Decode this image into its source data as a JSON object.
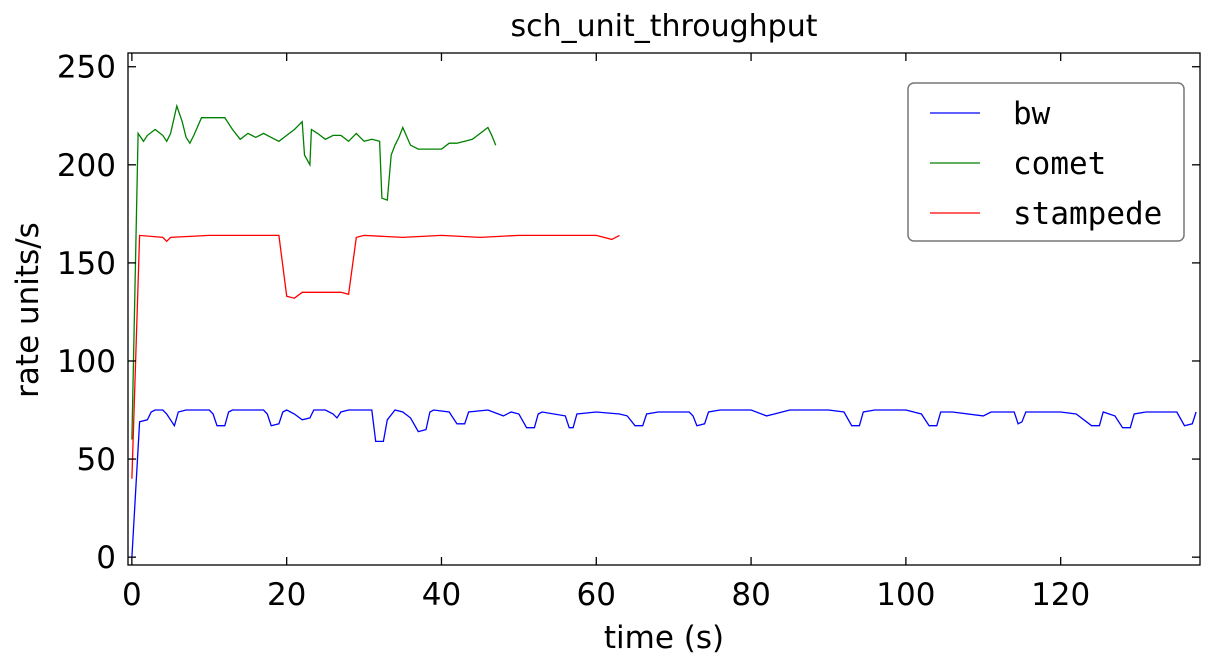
{
  "chart_data": {
    "type": "line",
    "title": "sch_unit_throughput",
    "xlabel": "time (s)",
    "ylabel": "rate units/s",
    "xlim": [
      -0.5,
      138
    ],
    "ylim": [
      -4,
      257
    ],
    "xticks": [
      0,
      20,
      40,
      60,
      80,
      100,
      120
    ],
    "yticks": [
      0,
      50,
      100,
      150,
      200,
      250
    ],
    "grid": false,
    "legend_position": "top-right",
    "series": [
      {
        "name": "bw",
        "color": "#0000ff",
        "points": [
          [
            0,
            0
          ],
          [
            1,
            69
          ],
          [
            2,
            70
          ],
          [
            2.5,
            74
          ],
          [
            3,
            75
          ],
          [
            4,
            75
          ],
          [
            4.5,
            73
          ],
          [
            5.5,
            67
          ],
          [
            6,
            74
          ],
          [
            7,
            75
          ],
          [
            10,
            75
          ],
          [
            10.5,
            73
          ],
          [
            11,
            67
          ],
          [
            12,
            67
          ],
          [
            12.5,
            74
          ],
          [
            13,
            75
          ],
          [
            17,
            75
          ],
          [
            17.5,
            73
          ],
          [
            18,
            67
          ],
          [
            19,
            68
          ],
          [
            19.5,
            74
          ],
          [
            20,
            75
          ],
          [
            21,
            73
          ],
          [
            22,
            70
          ],
          [
            23,
            71
          ],
          [
            23.5,
            75
          ],
          [
            25,
            75
          ],
          [
            26,
            73
          ],
          [
            26.5,
            71
          ],
          [
            27,
            74
          ],
          [
            28,
            75
          ],
          [
            31,
            75
          ],
          [
            31.5,
            59
          ],
          [
            32.5,
            59
          ],
          [
            33,
            70
          ],
          [
            34,
            75
          ],
          [
            35,
            74
          ],
          [
            36,
            71
          ],
          [
            37,
            64
          ],
          [
            38,
            65
          ],
          [
            38.5,
            74
          ],
          [
            39,
            75
          ],
          [
            41,
            74
          ],
          [
            42,
            68
          ],
          [
            43,
            68
          ],
          [
            43.5,
            74
          ],
          [
            46,
            75
          ],
          [
            48,
            72
          ],
          [
            49,
            74
          ],
          [
            50,
            73
          ],
          [
            51,
            66
          ],
          [
            52,
            66
          ],
          [
            52.5,
            73
          ],
          [
            53,
            74
          ],
          [
            56,
            72
          ],
          [
            56.5,
            66
          ],
          [
            57,
            66
          ],
          [
            57.5,
            73
          ],
          [
            60,
            74
          ],
          [
            63,
            73
          ],
          [
            64,
            72
          ],
          [
            65,
            67
          ],
          [
            66,
            67
          ],
          [
            66.5,
            73
          ],
          [
            68,
            74
          ],
          [
            72,
            74
          ],
          [
            72.5,
            72
          ],
          [
            73,
            67
          ],
          [
            74,
            68
          ],
          [
            74.5,
            74
          ],
          [
            76,
            75
          ],
          [
            80,
            75
          ],
          [
            82,
            72
          ],
          [
            83,
            73
          ],
          [
            85,
            75
          ],
          [
            90,
            75
          ],
          [
            92,
            74
          ],
          [
            93,
            67
          ],
          [
            94,
            67
          ],
          [
            94.5,
            74
          ],
          [
            96,
            75
          ],
          [
            100,
            75
          ],
          [
            102,
            73
          ],
          [
            103,
            67
          ],
          [
            104,
            67
          ],
          [
            104.5,
            74
          ],
          [
            106,
            74
          ],
          [
            110,
            72
          ],
          [
            111,
            74
          ],
          [
            114,
            74
          ],
          [
            114.5,
            68
          ],
          [
            115,
            69
          ],
          [
            115.5,
            74
          ],
          [
            120,
            74
          ],
          [
            122,
            73
          ],
          [
            124,
            67
          ],
          [
            125,
            67
          ],
          [
            125.5,
            74
          ],
          [
            127,
            72
          ],
          [
            128,
            66
          ],
          [
            129,
            66
          ],
          [
            129.5,
            73
          ],
          [
            131,
            74
          ],
          [
            135,
            74
          ],
          [
            136,
            67
          ],
          [
            137,
            68
          ],
          [
            137.5,
            74
          ]
        ]
      },
      {
        "name": "comet",
        "color": "#008000",
        "points": [
          [
            0,
            60
          ],
          [
            0.8,
            216
          ],
          [
            1.5,
            212
          ],
          [
            2,
            215
          ],
          [
            3,
            218
          ],
          [
            4,
            215
          ],
          [
            4.5,
            212
          ],
          [
            5,
            216
          ],
          [
            5.8,
            230
          ],
          [
            6.5,
            222
          ],
          [
            7,
            214
          ],
          [
            7.5,
            211
          ],
          [
            8,
            215
          ],
          [
            9,
            224
          ],
          [
            12,
            224
          ],
          [
            13,
            218
          ],
          [
            14,
            213
          ],
          [
            15,
            216
          ],
          [
            16,
            214
          ],
          [
            17,
            216
          ],
          [
            18,
            214
          ],
          [
            19,
            212
          ],
          [
            20,
            215
          ],
          [
            21,
            218
          ],
          [
            22,
            222
          ],
          [
            22.3,
            205
          ],
          [
            23,
            200
          ],
          [
            23.2,
            218
          ],
          [
            24,
            216
          ],
          [
            25,
            213
          ],
          [
            26,
            215
          ],
          [
            27,
            215
          ],
          [
            28,
            212
          ],
          [
            29,
            216
          ],
          [
            30,
            212
          ],
          [
            31,
            213
          ],
          [
            32,
            212
          ],
          [
            32.3,
            183
          ],
          [
            33,
            182
          ],
          [
            33.5,
            205
          ],
          [
            34,
            210
          ],
          [
            34.5,
            214
          ],
          [
            35,
            219
          ],
          [
            36,
            210
          ],
          [
            37,
            208
          ],
          [
            40,
            208
          ],
          [
            41,
            211
          ],
          [
            42,
            211
          ],
          [
            43,
            212
          ],
          [
            44,
            213
          ],
          [
            45,
            216
          ],
          [
            46,
            219
          ],
          [
            46.5,
            215
          ],
          [
            47,
            210
          ]
        ]
      },
      {
        "name": "stampede",
        "color": "#ff0000",
        "points": [
          [
            0,
            40
          ],
          [
            1,
            164
          ],
          [
            4,
            163
          ],
          [
            4.5,
            161
          ],
          [
            5,
            163
          ],
          [
            10,
            164
          ],
          [
            18,
            164
          ],
          [
            19,
            164
          ],
          [
            20,
            133
          ],
          [
            21,
            132
          ],
          [
            22,
            135
          ],
          [
            25,
            135
          ],
          [
            27,
            135
          ],
          [
            28,
            134
          ],
          [
            29,
            163
          ],
          [
            30,
            164
          ],
          [
            35,
            163
          ],
          [
            40,
            164
          ],
          [
            45,
            163
          ],
          [
            50,
            164
          ],
          [
            55,
            164
          ],
          [
            60,
            164
          ],
          [
            62,
            162
          ],
          [
            63,
            164
          ]
        ]
      }
    ]
  }
}
